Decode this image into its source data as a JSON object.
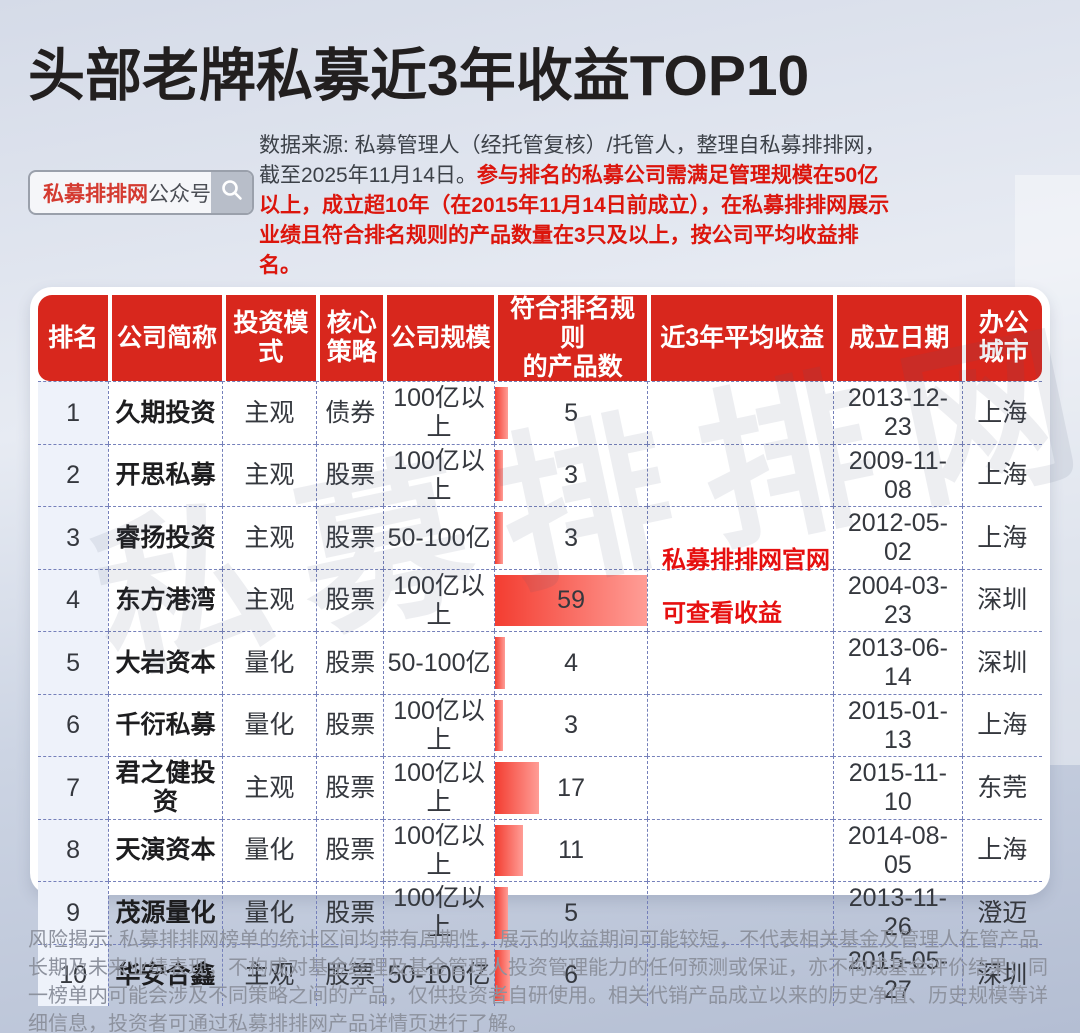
{
  "page": {
    "title": "头部老牌私募近3年收益TOP10",
    "search": {
      "brand": "私募排排网",
      "suffix": "公众号"
    },
    "source_note_normal": "数据来源: 私募管理人（经托管复核）/托管人，整理自私募排排网，截至2025年11月14日。",
    "source_note_highlight": "参与排名的私募公司需满足管理规模在50亿以上，成立超10年（在2015年11月14日前成立），在私募排排网展示业绩且符合排名规则的产品数量在3只及以上，按公司平均收益排名。",
    "watermark_gray": "私募排排网",
    "watermark_red_line1": "私募排排网官网",
    "watermark_red_line2": "可查看收益",
    "footer_disclaimer": "风险揭示: 私募排排网榜单的统计区间均带有周期性，展示的收益期间可能较短，不代表相关基金及管理人在管产品长期及未来业绩表现，不构成对基金经理及基金管理人投资管理能力的任何预测或保证，亦不构成基金评价结果；同一榜单内可能会涉及不同策略之间的产品，仅供投资者自研使用。相关代销产品成立以来的历史净值、历史规模等详细信息，投资者可通过私募排排网产品详情页进行了解。",
    "colors": {
      "header_red": "#d8271d",
      "highlight_red": "#dc150c",
      "bar_gradient_start": "#f33d31",
      "bar_gradient_end": "#ff9d96",
      "dashed_border": "#7580ba",
      "rank_column_bg": "#eef2fa"
    }
  },
  "chart_data": {
    "type": "table",
    "title": "头部老牌私募近3年收益TOP10",
    "columns": [
      "排名",
      "公司简称",
      "投资模式",
      "核心策略",
      "公司规模",
      "符合排名规则\n的产品数",
      "近3年平均收益",
      "成立日期",
      "办公城市"
    ],
    "column_widths_pct": [
      7,
      11.3,
      9.4,
      6.7,
      11,
      15.3,
      18.5,
      12.8,
      8
    ],
    "product_count_bar_max": 59,
    "rows": [
      {
        "rank": 1,
        "company": "久期投资",
        "mode": "主观",
        "strategy": "债券",
        "scale": "100亿以上",
        "products": 5,
        "return_3y": "",
        "founded": "2013-12-23",
        "city": "上海"
      },
      {
        "rank": 2,
        "company": "开思私募",
        "mode": "主观",
        "strategy": "股票",
        "scale": "100亿以上",
        "products": 3,
        "return_3y": "",
        "founded": "2009-11-08",
        "city": "上海"
      },
      {
        "rank": 3,
        "company": "睿扬投资",
        "mode": "主观",
        "strategy": "股票",
        "scale": "50-100亿",
        "products": 3,
        "return_3y": "",
        "founded": "2012-05-02",
        "city": "上海"
      },
      {
        "rank": 4,
        "company": "东方港湾",
        "mode": "主观",
        "strategy": "股票",
        "scale": "100亿以上",
        "products": 59,
        "return_3y": "",
        "founded": "2004-03-23",
        "city": "深圳"
      },
      {
        "rank": 5,
        "company": "大岩资本",
        "mode": "量化",
        "strategy": "股票",
        "scale": "50-100亿",
        "products": 4,
        "return_3y": "",
        "founded": "2013-06-14",
        "city": "深圳"
      },
      {
        "rank": 6,
        "company": "千衍私募",
        "mode": "量化",
        "strstrategy": "",
        "strategy": "股票",
        "scale": "100亿以上",
        "products": 3,
        "return_3y": "",
        "founded": "2015-01-13",
        "city": "上海"
      },
      {
        "rank": 7,
        "company": "君之健投资",
        "mode": "主观",
        "strategy": "股票",
        "scale": "100亿以上",
        "products": 17,
        "return_3y": "",
        "founded": "2015-11-10",
        "city": "东莞"
      },
      {
        "rank": 8,
        "company": "天演资本",
        "mode": "量化",
        "strategy": "股票",
        "scale": "100亿以上",
        "products": 11,
        "return_3y": "",
        "founded": "2014-08-05",
        "city": "上海"
      },
      {
        "rank": 9,
        "company": "茂源量化",
        "mode": "量化",
        "strategy": "股票",
        "scale": "100亿以上",
        "products": 5,
        "return_3y": "",
        "founded": "2013-11-26",
        "city": "澄迈"
      },
      {
        "rank": 10,
        "company": "华安合鑫",
        "mode": "主观",
        "strategy": "股票",
        "scale": "50-100亿",
        "products": 6,
        "return_3y": "",
        "founded": "2015-05-27",
        "city": "深圳"
      }
    ]
  }
}
